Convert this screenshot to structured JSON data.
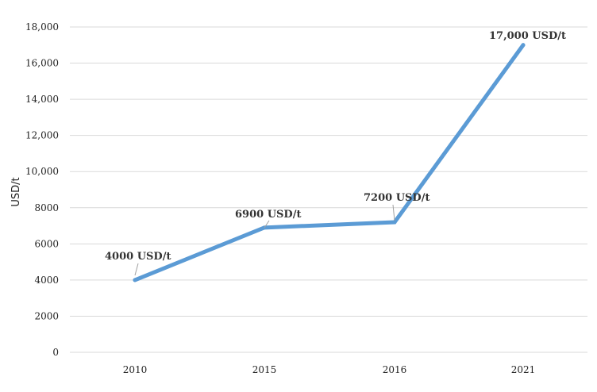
{
  "chart_data": {
    "type": "line",
    "title": "",
    "xlabel": "",
    "ylabel": "USD/t",
    "categories": [
      "2010",
      "2015",
      "2016",
      "2021"
    ],
    "series": [
      {
        "values": [
          4000,
          6900,
          7200,
          17000
        ],
        "color": "#5b9bd5"
      }
    ],
    "data_labels": [
      "4000 USD/t",
      "6900 USD/t",
      "7200 USD/t",
      "17,000 USD/t"
    ],
    "ylim": [
      0,
      18000
    ],
    "yticks": [
      0,
      2000,
      4000,
      6000,
      8000,
      10000,
      12000,
      14000,
      16000,
      18000
    ],
    "ytick_labels": [
      "0",
      "2000",
      "4000",
      "6000",
      "8000",
      "10,000",
      "12,000",
      "14,000",
      "16,000",
      "18,000"
    ],
    "grid": true,
    "legend": "none"
  }
}
